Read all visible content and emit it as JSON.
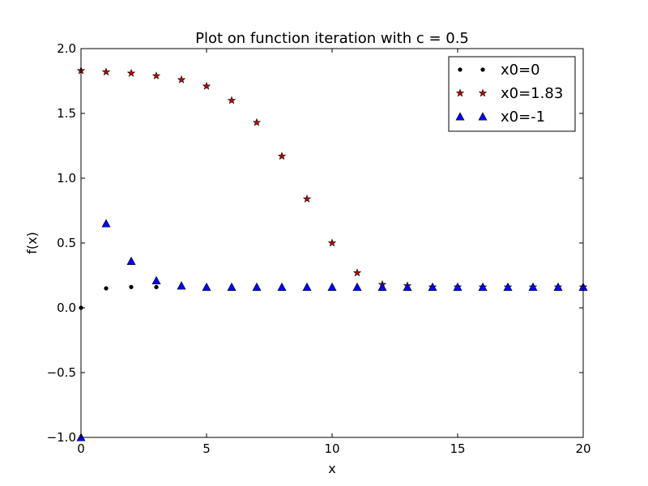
{
  "chart_data": {
    "type": "scatter",
    "title": "Plot on function iteration with c = 0.5",
    "xlabel": "x",
    "ylabel": "f(x)",
    "xlim": [
      0,
      20
    ],
    "ylim": [
      -1.0,
      2.0
    ],
    "xticks": [
      0,
      5,
      10,
      15,
      20
    ],
    "xtick_labels": [
      "0",
      "5",
      "10",
      "15",
      "20"
    ],
    "yticks": [
      -1.0,
      -0.5,
      0.0,
      0.5,
      1.0,
      1.5,
      2.0
    ],
    "ytick_labels": [
      "−1.0",
      "−0.5",
      "0.0",
      "0.5",
      "1.0",
      "1.5",
      "2.0"
    ],
    "grid": false,
    "legend_position": "upper right",
    "series": [
      {
        "name": "x0=0",
        "marker": "dot",
        "color": "#000000",
        "x": [
          0,
          1,
          2,
          3,
          4,
          5,
          6,
          7,
          8,
          9,
          10,
          11,
          12,
          13,
          14,
          15,
          16,
          17,
          18,
          19,
          20
        ],
        "y": [
          0,
          0.15,
          0.16,
          0.16,
          0.16,
          0.16,
          0.16,
          0.16,
          0.16,
          0.16,
          0.16,
          0.16,
          0.16,
          0.16,
          0.16,
          0.16,
          0.16,
          0.16,
          0.16,
          0.16,
          0.16
        ]
      },
      {
        "name": "x0=1.83",
        "marker": "star",
        "color": "#c00000",
        "x": [
          0,
          1,
          2,
          3,
          4,
          5,
          6,
          7,
          8,
          9,
          10,
          11,
          12,
          13,
          14,
          15,
          16,
          17,
          18,
          19,
          20
        ],
        "y": [
          1.83,
          1.82,
          1.81,
          1.79,
          1.76,
          1.71,
          1.6,
          1.43,
          1.17,
          0.84,
          0.5,
          0.27,
          0.18,
          0.17,
          0.16,
          0.16,
          0.16,
          0.16,
          0.16,
          0.16,
          0.16
        ]
      },
      {
        "name": "x0=-1",
        "marker": "triangle",
        "color": "#0000ff",
        "x": [
          0,
          1,
          2,
          3,
          4,
          5,
          6,
          7,
          8,
          9,
          10,
          11,
          12,
          13,
          14,
          15,
          16,
          17,
          18,
          19,
          20
        ],
        "y": [
          -1.0,
          0.65,
          0.36,
          0.21,
          0.17,
          0.16,
          0.16,
          0.16,
          0.16,
          0.16,
          0.16,
          0.16,
          0.16,
          0.16,
          0.16,
          0.16,
          0.16,
          0.16,
          0.16,
          0.16,
          0.16
        ]
      }
    ]
  }
}
